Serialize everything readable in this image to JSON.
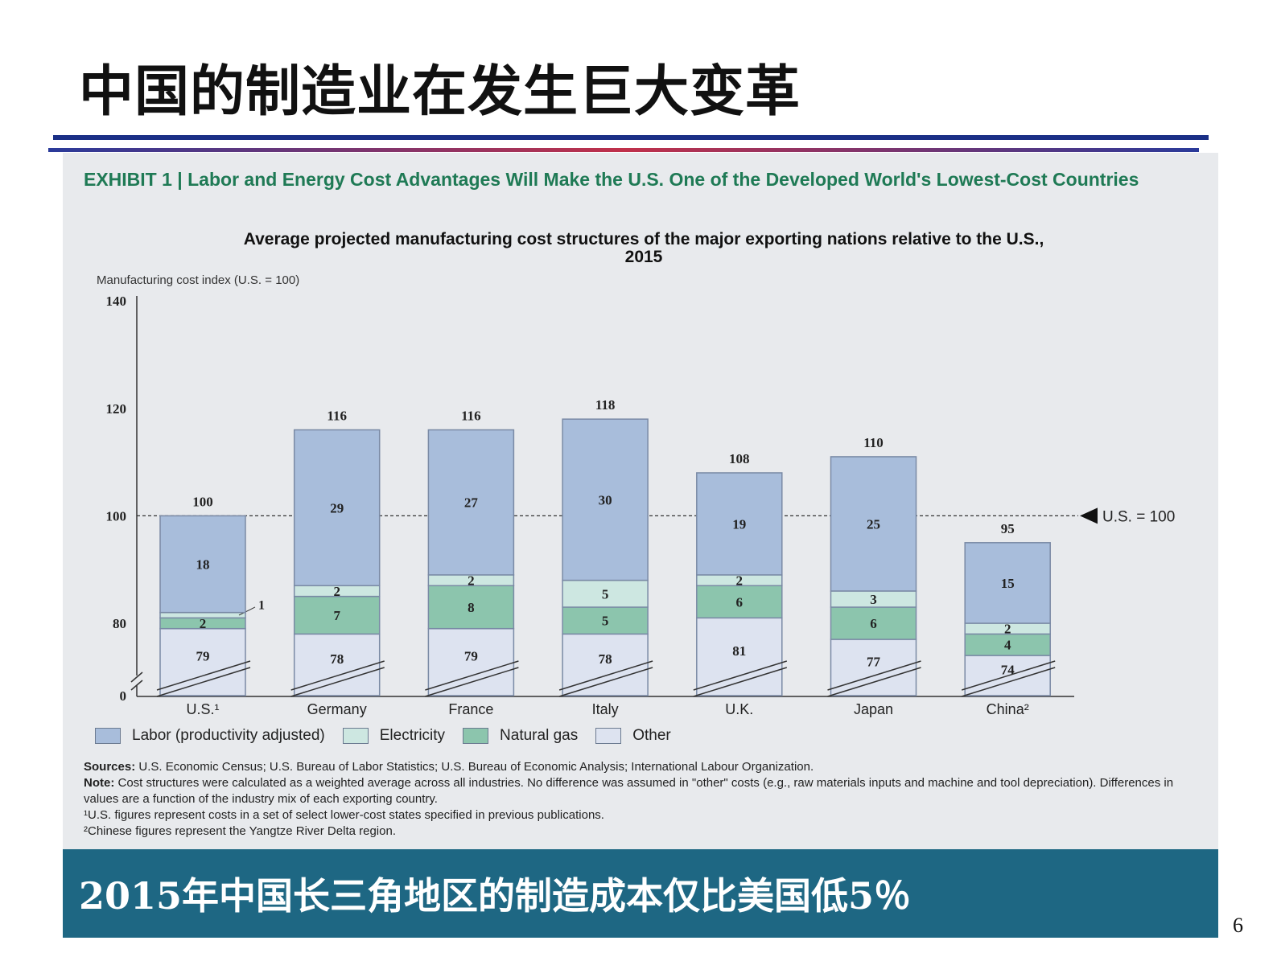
{
  "slide": {
    "title": "中国的制造业在发生巨大变革",
    "banner": "2015年中国长三角地区的制造成本仅比美国低5％",
    "page_number": "6"
  },
  "exhibit": {
    "label": "EXHIBIT 1 | Labor and Energy Cost Advantages Will Make the U.S. One of the Developed World's Lowest-Cost Countries"
  },
  "notes": {
    "sources_label": "Sources:",
    "sources": " U.S. Economic Census; U.S. Bureau of Labor Statistics; U.S. Bureau of Economic Analysis; International Labour Organization.",
    "note_label": "Note:",
    "note": " Cost structures were calculated as a weighted average across all industries. No difference was assumed in \"other\" costs (e.g., raw materials inputs and machine and tool depreciation). Differences in values are a function of the industry mix of each exporting country.",
    "footnote1": "¹U.S. figures represent costs in a set of select lower-cost states specified in previous publications.",
    "footnote2": "²Chinese figures represent the Yangtze River Delta region."
  },
  "chart_data": {
    "type": "bar",
    "stacked": true,
    "title": "Average projected manufacturing cost structures of the major exporting nations relative to the U.S., 2015",
    "ylabel": "Manufacturing cost index (U.S. = 100)",
    "yticks": [
      "0",
      "80",
      "100",
      "120",
      "140"
    ],
    "ylim": [
      0,
      140
    ],
    "axis_break": "between 0 and 80",
    "reference_line": {
      "value": 100,
      "label": "U.S. = 100"
    },
    "legend_position": "bottom",
    "categories": [
      "U.S.¹",
      "Germany",
      "France",
      "Italy",
      "U.K.",
      "Japan",
      "China²"
    ],
    "totals": [
      100,
      116,
      116,
      118,
      108,
      110,
      95
    ],
    "series": [
      {
        "name": "Other",
        "color": "#dde3f0",
        "values": [
          79,
          78,
          79,
          78,
          81,
          77,
          74
        ]
      },
      {
        "name": "Natural gas",
        "color": "#8cc5ad",
        "values": [
          2,
          7,
          8,
          5,
          6,
          6,
          4
        ]
      },
      {
        "name": "Electricity",
        "color": "#cde7e1",
        "values": [
          1,
          2,
          2,
          5,
          2,
          3,
          2
        ]
      },
      {
        "name": "Labor (productivity adjusted)",
        "color": "#a8bddb",
        "values": [
          18,
          29,
          27,
          30,
          19,
          25,
          15
        ]
      }
    ],
    "legend_order": [
      "Labor (productivity adjusted)",
      "Electricity",
      "Natural gas",
      "Other"
    ]
  }
}
